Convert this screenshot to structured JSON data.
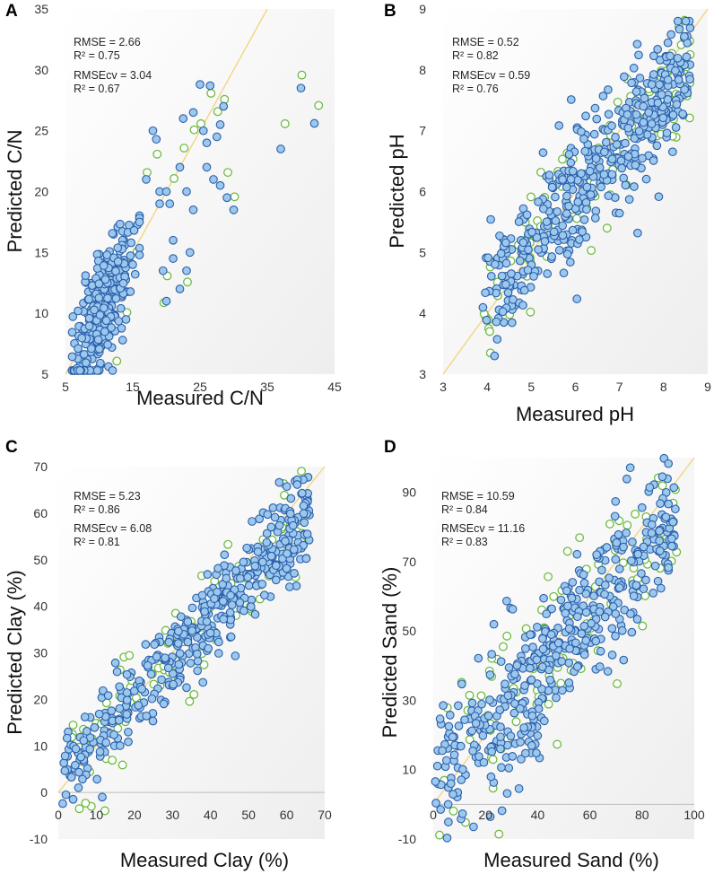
{
  "colors": {
    "calibration_fill": "#9cc8ee",
    "calibration_edge": "#2a5ea8",
    "validation_edge": "#6dbb3f",
    "one_to_one_line": "#f2d27a",
    "plot_background": "#f3f3f3"
  },
  "chart_data": [
    {
      "type": "scatter",
      "panel": "A",
      "xlabel": "Measured C/N",
      "ylabel": "Predicted C/N",
      "xlim": [
        5,
        45
      ],
      "ylim": [
        5,
        35
      ],
      "xticks": [
        "5",
        "15",
        "25",
        "35",
        "45"
      ],
      "yticks": [
        "5",
        "10",
        "15",
        "20",
        "25",
        "30",
        "35"
      ],
      "reference_line": "1:1",
      "stats": [
        "RMSE = 2.66",
        "R² = 0.75",
        "RMSEcv = 3.04",
        "R² = 0.67"
      ],
      "series": [
        {
          "name": "calibration",
          "cluster": {
            "center": [
              10.5,
              11
            ],
            "spread": [
              2.2,
              2.6
            ],
            "count": 320,
            "x_range": [
              6,
              16
            ]
          }
        },
        {
          "name": "calibration-tail",
          "points": [
            [
              12,
              5.3
            ],
            [
              13.5,
              7.8
            ],
            [
              14,
              9.5
            ],
            [
              15,
              14
            ],
            [
              16,
              17.5
            ],
            [
              17,
              21
            ],
            [
              18,
              25
            ],
            [
              18.5,
              24.3
            ],
            [
              19,
              20
            ],
            [
              19.5,
              13.5
            ],
            [
              20,
              11
            ],
            [
              20.5,
              19
            ],
            [
              21,
              16
            ],
            [
              22,
              22
            ],
            [
              22.5,
              26
            ],
            [
              23,
              20
            ],
            [
              23.5,
              15
            ],
            [
              24,
              26.5
            ],
            [
              25,
              28.8
            ],
            [
              25.5,
              25
            ],
            [
              26,
              24
            ],
            [
              26.5,
              28.7
            ],
            [
              27,
              21
            ],
            [
              27.5,
              24.5
            ],
            [
              28,
              25.5
            ],
            [
              28.5,
              27
            ],
            [
              29,
              19.5
            ],
            [
              30,
              18.5
            ],
            [
              37,
              23.5
            ],
            [
              40,
              28.5
            ],
            [
              42,
              25.6
            ],
            [
              28,
              20.5
            ],
            [
              24,
              18.5
            ],
            [
              22,
              12
            ],
            [
              20,
              20
            ],
            [
              21,
              14.5
            ],
            [
              19,
              19
            ],
            [
              23,
              13.5
            ],
            [
              26,
              22
            ]
          ]
        },
        {
          "name": "validation",
          "points": [
            [
              12.5,
              6
            ],
            [
              14,
              10
            ],
            [
              15.5,
              15
            ],
            [
              17,
              21.5
            ],
            [
              18.5,
              23
            ],
            [
              20,
              13
            ],
            [
              21,
              21
            ],
            [
              22.5,
              23.5
            ],
            [
              24,
              25
            ],
            [
              25,
              25.5
            ],
            [
              26.5,
              28
            ],
            [
              27.5,
              26.5
            ],
            [
              28.5,
              27.5
            ],
            [
              29,
              21.5
            ],
            [
              30,
              19.5
            ],
            [
              37.5,
              25.5
            ],
            [
              40,
              29.5
            ],
            [
              42.5,
              27
            ],
            [
              19.5,
              10.8
            ],
            [
              23,
              12.5
            ]
          ]
        }
      ]
    },
    {
      "type": "scatter",
      "panel": "B",
      "xlabel": "Measured pH",
      "ylabel": "Predicted pH",
      "xlim": [
        3,
        9
      ],
      "ylim": [
        3,
        9
      ],
      "xticks": [
        "3",
        "4",
        "5",
        "6",
        "7",
        "8",
        "9"
      ],
      "yticks": [
        "3",
        "4",
        "5",
        "6",
        "7",
        "8",
        "9"
      ],
      "reference_line": "1:1",
      "stats": [
        "RMSE = 0.52",
        "R² = 0.82",
        "RMSEcv = 0.59",
        "R² = 0.76"
      ],
      "series": [
        {
          "name": "calibration",
          "band": {
            "x_range": [
              3.9,
              8.6
            ],
            "slope": 0.82,
            "intercept": 1.05,
            "noise": 0.52,
            "count": 460
          }
        },
        {
          "name": "validation",
          "band": {
            "x_range": [
              3.9,
              8.6
            ],
            "slope": 0.82,
            "intercept": 1.05,
            "noise": 0.55,
            "count": 110
          }
        }
      ]
    },
    {
      "type": "scatter",
      "panel": "C",
      "xlabel": "Measured Clay (%)",
      "ylabel": "Predicted Clay (%)",
      "xlim": [
        0,
        70
      ],
      "ylim": [
        -10,
        70
      ],
      "xticks": [
        "0",
        "10",
        "20",
        "30",
        "40",
        "50",
        "60",
        "70"
      ],
      "yticks": [
        "-10",
        "0",
        "10",
        "20",
        "30",
        "40",
        "50",
        "60",
        "70"
      ],
      "reference_line": "1:1",
      "stats": [
        "RMSE = 5.23",
        "R² = 0.86",
        "RMSEcv = 6.08",
        "R² = 0.81"
      ],
      "series": [
        {
          "name": "calibration",
          "band": {
            "x_range": [
              1,
              66
            ],
            "slope": 0.86,
            "intercept": 3,
            "noise": 5.2,
            "count": 440
          }
        },
        {
          "name": "validation",
          "band": {
            "x_range": [
              1,
              66
            ],
            "slope": 0.86,
            "intercept": 3,
            "noise": 6,
            "count": 100
          }
        }
      ]
    },
    {
      "type": "scatter",
      "panel": "D",
      "xlabel": "Measured Sand (%)",
      "ylabel": "Predicted Sand (%)",
      "xlim": [
        0,
        100
      ],
      "ylim": [
        -10,
        100
      ],
      "xticks": [
        "0",
        "20",
        "40",
        "60",
        "80",
        "100"
      ],
      "yticks": [
        "-10",
        "10",
        "30",
        "50",
        "70",
        "90"
      ],
      "reference_line": "1:1",
      "stats": [
        "RMSE = 10.59",
        "R² = 0.84",
        "RMSEcv = 11.16",
        "R² = 0.83"
      ],
      "series": [
        {
          "name": "calibration",
          "band": {
            "x_range": [
              0,
              93
            ],
            "slope": 0.84,
            "intercept": 5,
            "noise": 10,
            "count": 440
          }
        },
        {
          "name": "validation",
          "band": {
            "x_range": [
              0,
              93
            ],
            "slope": 0.84,
            "intercept": 5,
            "noise": 11,
            "count": 100
          }
        }
      ]
    }
  ]
}
